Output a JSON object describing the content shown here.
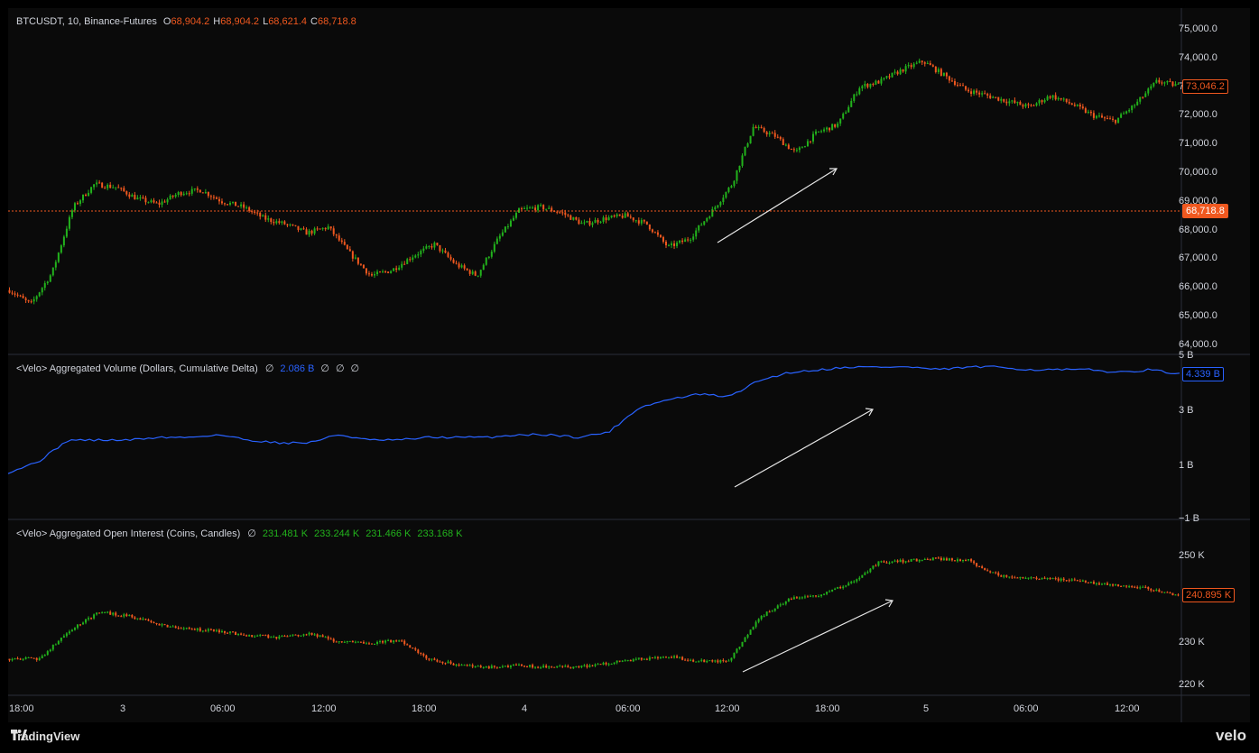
{
  "price_legend": {
    "symbol": "BTCUSDT, 10, Binance-Futures",
    "o_label": "O",
    "o": "68,904.2",
    "h_label": "H",
    "h": "68,904.2",
    "l_label": "L",
    "l": "68,621.4",
    "c_label": "C",
    "c": "68,718.8"
  },
  "volume_legend": {
    "title": "<Velo> Aggregated Volume (Dollars, Cumulative Delta)",
    "null1": "∅",
    "value": "2.086 B",
    "null2": "∅",
    "null3": "∅",
    "null4": "∅"
  },
  "oi_legend": {
    "title": "<Velo> Aggregated Open Interest (Coins, Candles)",
    "null1": "∅",
    "o": "231.481 K",
    "h": "233.244 K",
    "l": "231.466 K",
    "c": "233.168 K"
  },
  "badges": {
    "price_last": "73,046.2",
    "price_line": "68,718.8",
    "volume_last": "4.339 B",
    "oi_last": "240.895 K"
  },
  "x_axis_ticks": [
    "18:00",
    "3",
    "06:00",
    "12:00",
    "18:00",
    "4",
    "06:00",
    "12:00",
    "18:00",
    "5",
    "06:00",
    "12:00"
  ],
  "price_axis_ticks": [
    "75,000.0",
    "74,000.0",
    "73,000.0",
    "72,000.0",
    "71,000.0",
    "70,000.0",
    "69,000.0",
    "68,000.0",
    "67,000.0",
    "66,000.0",
    "65,000.0",
    "64,000.0"
  ],
  "volume_axis_ticks": [
    "5 B",
    "3 B",
    "1 B",
    "−1 B"
  ],
  "oi_axis_ticks": [
    "250 K",
    "230 K",
    "220 K"
  ],
  "brand": {
    "tradingview": "TradingView",
    "velo": "velo"
  },
  "colors": {
    "up": "#22b21c",
    "down": "#f0581f",
    "delta_line": "#2962ff",
    "background": "#0a0a0a"
  },
  "chart_data": [
    {
      "type": "candlestick",
      "title": "BTCUSDT, 10, Binance-Futures",
      "ylim": [
        64000,
        75000
      ],
      "x": [
        "18:00",
        "3",
        "06:00",
        "12:00",
        "18:00",
        "4",
        "06:00",
        "12:00",
        "18:00",
        "5",
        "06:00",
        "12:00"
      ],
      "close_path": [
        65900,
        65400,
        66500,
        68800,
        69600,
        69500,
        69100,
        68900,
        69300,
        69400,
        69000,
        68800,
        68400,
        68200,
        67900,
        68100,
        67200,
        66400,
        66600,
        67100,
        67500,
        66800,
        66400,
        67700,
        68700,
        68800,
        68600,
        68200,
        68400,
        68500,
        68200,
        67400,
        67700,
        68600,
        69600,
        71600,
        71300,
        70700,
        71400,
        71700,
        73000,
        73200,
        73600,
        73900,
        73400,
        72900,
        72700,
        72500,
        72300,
        72700,
        72400,
        72000,
        71800,
        72400,
        73200,
        73046.2
      ],
      "last": 73046.2,
      "horizontal_line": 68718.8
    },
    {
      "type": "line",
      "title": "<Velo> Aggregated Volume (Dollars, Cumulative Delta)",
      "ylim": [
        -1,
        5
      ],
      "unit": "B",
      "values": [
        0.7,
        1.1,
        1.9,
        1.9,
        1.9,
        2.0,
        2.0,
        2.1,
        1.9,
        1.8,
        1.8,
        2.1,
        1.9,
        1.9,
        2.0,
        2.0,
        2.0,
        2.1,
        2.1,
        2.0,
        2.2,
        3.1,
        3.4,
        3.6,
        3.5,
        4.1,
        4.4,
        4.5,
        4.6,
        4.6,
        4.6,
        4.5,
        4.6,
        4.6,
        4.5,
        4.5,
        4.5,
        4.4,
        4.5,
        4.339
      ],
      "last": 4.339
    },
    {
      "type": "candlestick",
      "title": "<Velo> Aggregated Open Interest (Coins, Candles)",
      "ylim": [
        218,
        255
      ],
      "unit": "K",
      "close_path": [
        226.0,
        226.0,
        232.5,
        237.0,
        236.0,
        234.0,
        233.0,
        232.5,
        231.5,
        231.0,
        232.0,
        230.0,
        229.5,
        230.5,
        226.0,
        224.5,
        224.0,
        224.5,
        224.0,
        224.0,
        225.0,
        226.0,
        226.5,
        225.5,
        225.5,
        235.5,
        240.0,
        241.0,
        243.5,
        248.5,
        249.0,
        249.5,
        249.0,
        245.5,
        245.0,
        244.5,
        244.0,
        243.0,
        242.5,
        240.895
      ],
      "last": 240.895
    }
  ]
}
